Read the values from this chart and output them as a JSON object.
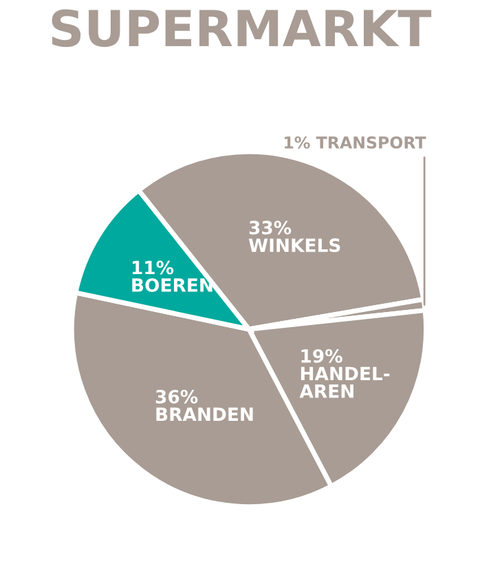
{
  "chart_data": {
    "type": "pie",
    "title": "SUPERMARKT",
    "categories": [
      "WINKELS",
      "TRANSPORT",
      "HANDEL-\nAREN",
      "BRANDEN",
      "BOEREN"
    ],
    "values": [
      33,
      1,
      19,
      36,
      11
    ],
    "value_labels": [
      "33%",
      "1%",
      "19%",
      "36%",
      "11%"
    ],
    "colors": [
      "#a89c94",
      "#a89c94",
      "#a89c94",
      "#a89c94",
      "#00a99d"
    ],
    "legend": false
  }
}
